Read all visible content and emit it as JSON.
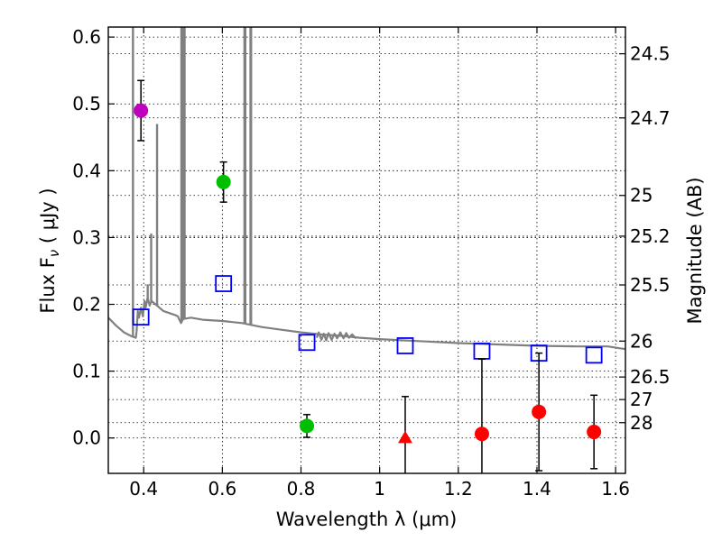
{
  "chart_data": {
    "type": "scatter",
    "xlabel": "Wavelength  λ (μm)",
    "ylabel": "Flux  F",
    "ylabel_sub": "ν",
    "ylabel_unit": "  ( μJy )",
    "y2label": "Magnitude (AB)",
    "xlim": [
      0.31,
      1.625
    ],
    "ylim": [
      -0.053,
      0.615
    ],
    "grid": true,
    "x_ticks": [
      0.4,
      0.6,
      0.8,
      1.0,
      1.2,
      1.4,
      1.6
    ],
    "x_tick_labels": [
      "0.4",
      "0.6",
      "0.8",
      "1",
      "1.2",
      "1.4",
      "1.6"
    ],
    "y_ticks": [
      0.0,
      0.1,
      0.2,
      0.3,
      0.4,
      0.5,
      0.6
    ],
    "y_tick_labels": [
      "0.0",
      "0.1",
      "0.2",
      "0.3",
      "0.4",
      "0.5",
      "0.6"
    ],
    "y2_ticks": [
      {
        "label": "24.5",
        "flux": 0.575
      },
      {
        "label": "24.7",
        "flux": 0.479
      },
      {
        "label": "25",
        "flux": 0.363
      },
      {
        "label": "25.2",
        "flux": 0.302
      },
      {
        "label": "25.5",
        "flux": 0.229
      },
      {
        "label": "26",
        "flux": 0.145
      },
      {
        "label": "26.5",
        "flux": 0.0912
      },
      {
        "label": "27",
        "flux": 0.0575
      },
      {
        "label": "28",
        "flux": 0.0229
      }
    ],
    "photometry": [
      {
        "x": 0.393,
        "y": 0.49,
        "err": 0.045,
        "marker": "circle",
        "color": "#bf00bf"
      },
      {
        "x": 0.603,
        "y": 0.383,
        "err": 0.03,
        "marker": "circle",
        "color": "#00bf00"
      },
      {
        "x": 0.815,
        "y": 0.018,
        "err": 0.017,
        "marker": "circle",
        "color": "#00bf00"
      },
      {
        "x": 1.065,
        "y": 0.0,
        "err": 0.062,
        "marker": "triangle",
        "color": "#ff0000"
      },
      {
        "x": 1.26,
        "y": 0.006,
        "err": 0.112,
        "marker": "circle",
        "color": "#ff0000"
      },
      {
        "x": 1.405,
        "y": 0.039,
        "err": 0.088,
        "marker": "circle",
        "color": "#ff0000"
      },
      {
        "x": 1.545,
        "y": 0.009,
        "err": 0.055,
        "marker": "circle",
        "color": "#ff0000"
      }
    ],
    "model_photometry": [
      {
        "x": 0.393,
        "y": 0.181
      },
      {
        "x": 0.603,
        "y": 0.231
      },
      {
        "x": 0.815,
        "y": 0.143
      },
      {
        "x": 1.065,
        "y": 0.138
      },
      {
        "x": 1.26,
        "y": 0.13
      },
      {
        "x": 1.405,
        "y": 0.127
      },
      {
        "x": 1.545,
        "y": 0.124
      }
    ],
    "spectrum": {
      "color": "#808080",
      "points": [
        [
          0.31,
          0.18
        ],
        [
          0.33,
          0.168
        ],
        [
          0.35,
          0.158
        ],
        [
          0.37,
          0.152
        ],
        [
          0.38,
          0.15
        ],
        [
          0.382,
          0.16
        ],
        [
          0.385,
          0.19
        ],
        [
          0.388,
          0.18
        ],
        [
          0.393,
          0.195
        ],
        [
          0.398,
          0.182
        ],
        [
          0.402,
          0.205
        ],
        [
          0.405,
          0.195
        ],
        [
          0.41,
          0.21
        ],
        [
          0.415,
          0.198
        ],
        [
          0.42,
          0.205
        ],
        [
          0.43,
          0.2
        ],
        [
          0.44,
          0.195
        ],
        [
          0.45,
          0.19
        ],
        [
          0.46,
          0.188
        ],
        [
          0.47,
          0.186
        ],
        [
          0.48,
          0.184
        ],
        [
          0.487,
          0.182
        ],
        [
          0.49,
          0.178
        ],
        [
          0.495,
          0.172
        ],
        [
          0.5,
          0.178
        ],
        [
          0.52,
          0.18
        ],
        [
          0.55,
          0.177
        ],
        [
          0.6,
          0.175
        ],
        [
          0.65,
          0.172
        ],
        [
          0.7,
          0.166
        ],
        [
          0.75,
          0.162
        ],
        [
          0.8,
          0.158
        ],
        [
          0.85,
          0.155
        ],
        [
          0.9,
          0.153
        ],
        [
          0.95,
          0.15
        ],
        [
          1.0,
          0.148
        ],
        [
          1.1,
          0.145
        ],
        [
          1.2,
          0.142
        ],
        [
          1.3,
          0.14
        ],
        [
          1.4,
          0.138
        ],
        [
          1.5,
          0.137
        ],
        [
          1.58,
          0.137
        ],
        [
          1.625,
          0.133
        ]
      ],
      "absorption": [
        [
          0.84,
          0.15
        ],
        [
          0.845,
          0.158
        ],
        [
          0.852,
          0.147
        ],
        [
          0.858,
          0.156
        ],
        [
          0.864,
          0.146
        ],
        [
          0.87,
          0.157
        ],
        [
          0.878,
          0.147
        ],
        [
          0.885,
          0.156
        ],
        [
          0.892,
          0.149
        ],
        [
          0.9,
          0.158
        ],
        [
          0.908,
          0.149
        ],
        [
          0.915,
          0.157
        ],
        [
          0.922,
          0.15
        ],
        [
          0.93,
          0.155
        ],
        [
          0.94,
          0.149
        ]
      ],
      "emission_lines": [
        {
          "x": 0.3727,
          "top": 0.615
        },
        {
          "x": 0.4102,
          "top": 0.23
        },
        {
          "x": 0.419,
          "top": 0.306
        },
        {
          "x": 0.434,
          "top": 0.47
        },
        {
          "x": 0.4959,
          "top": 0.615
        },
        {
          "x": 0.5007,
          "top": 0.615
        },
        {
          "x": 0.504,
          "top": 0.615
        },
        {
          "x": 0.6563,
          "top": 0.615
        },
        {
          "x": 0.6584,
          "top": 0.615
        },
        {
          "x": 0.6716,
          "top": 0.615
        },
        {
          "x": 0.6731,
          "top": 0.615
        }
      ]
    }
  }
}
